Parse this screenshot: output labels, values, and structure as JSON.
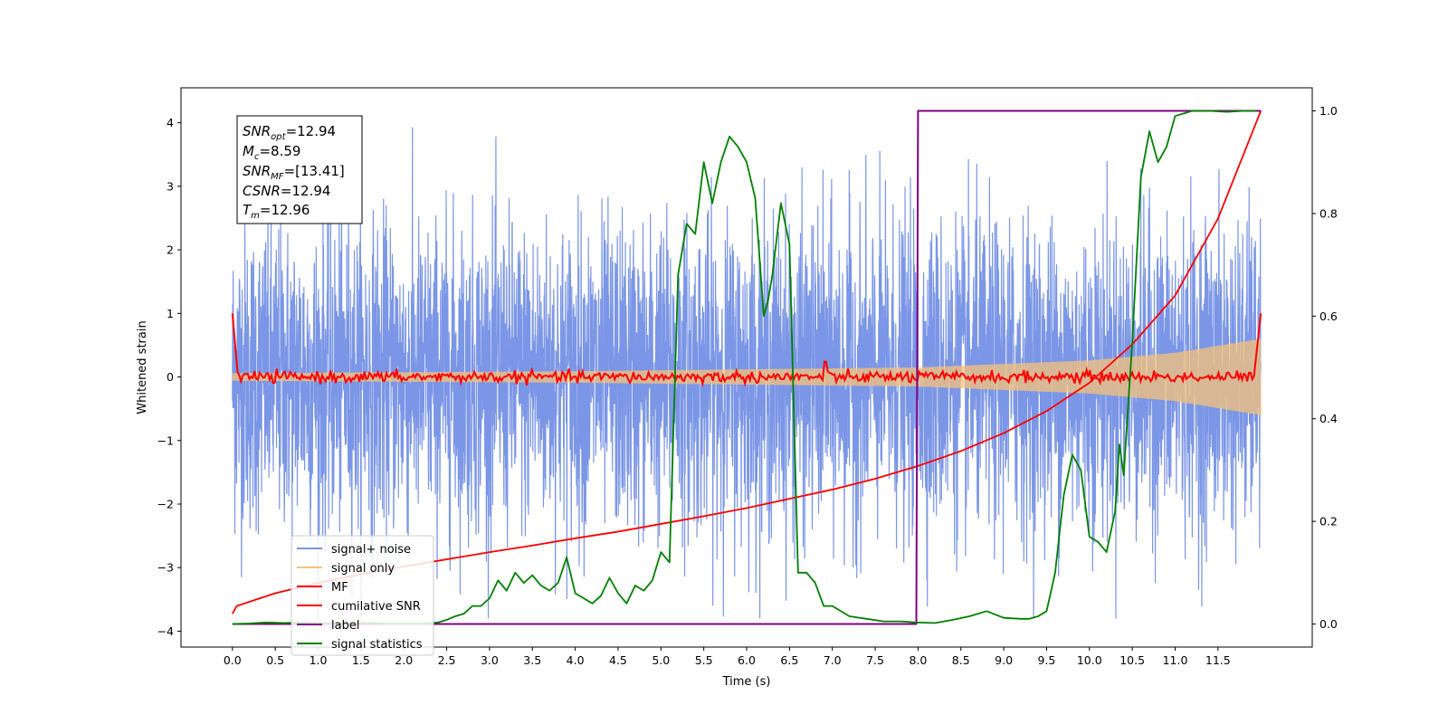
{
  "chart_data": {
    "type": "line",
    "xlabel": "Time (s)",
    "ylabel": "Whitened strain",
    "ylabel_right": "",
    "xlim": [
      -0.6,
      12.6
    ],
    "ylim": [
      -4.25,
      4.55
    ],
    "ylim_right": [
      -0.045,
      1.045
    ],
    "x_ticks": [
      "0.0",
      "0.5",
      "1.0",
      "1.5",
      "2.0",
      "2.5",
      "3.0",
      "3.5",
      "4.0",
      "4.5",
      "5.0",
      "5.5",
      "6.0",
      "6.5",
      "7.0",
      "7.5",
      "8.0",
      "8.5",
      "9.0",
      "9.5",
      "10.0",
      "10.5",
      "11.0",
      "11.5"
    ],
    "y_ticks_left": [
      "4",
      "3",
      "2",
      "1",
      "0",
      "−1",
      "−2",
      "−3",
      "−4"
    ],
    "y_ticks_right": [
      "1.0",
      "0.8",
      "0.6",
      "0.4",
      "0.2",
      "0.0"
    ],
    "info_box": [
      {
        "sym": "SNR",
        "sub": "opt",
        "text": "=12.94"
      },
      {
        "sym": "M",
        "sub": "c",
        "text": "=8.59"
      },
      {
        "sym": "SNR",
        "sub": "MF",
        "text": "=[13.41]"
      },
      {
        "sym": "CSNR",
        "sub": "",
        "text": "=12.94"
      },
      {
        "sym": "T",
        "sub": "m",
        "text": "=12.96"
      }
    ],
    "legend_position": "lower-left",
    "legend": [
      {
        "label": "signal+ noise",
        "color": "#7b96e6"
      },
      {
        "label": "signal only",
        "color": "#f5c27a"
      },
      {
        "label": "MF",
        "color": "#ff0000"
      },
      {
        "label": "cumilative SNR",
        "color": "#ff0000"
      },
      {
        "label": "label",
        "color": "#800080"
      },
      {
        "label": "signal statistics",
        "color": "#008000"
      }
    ],
    "series": [
      {
        "name": "signal+ noise",
        "axis": "left",
        "color": "#7b96e6",
        "description": "whitened noisy strain from 0 to 12 s, amplitude about ±2 to ±3.8"
      },
      {
        "name": "signal only",
        "axis": "left",
        "color": "#f5c27a",
        "envelope": {
          "x": [
            0,
            4,
            8,
            10,
            11,
            12
          ],
          "amp": [
            0.06,
            0.09,
            0.15,
            0.26,
            0.38,
            0.6
          ]
        }
      },
      {
        "name": "MF",
        "axis": "left",
        "color": "#ff0000",
        "description": "starts at 1.0, drops to about 0 by 0.08 s, fluctuates ±0.12, ends at 1.0 at 12 s"
      },
      {
        "name": "cumilative SNR",
        "axis": "right",
        "color": "#ff0000",
        "x": [
          0.0,
          0.05,
          0.5,
          1.0,
          1.5,
          2.0,
          2.5,
          3.0,
          3.5,
          4.0,
          4.5,
          5.0,
          5.5,
          6.0,
          6.5,
          7.0,
          7.5,
          8.0,
          8.5,
          9.0,
          9.5,
          10.0,
          10.5,
          11.0,
          11.5,
          12.0
        ],
        "y": [
          0.02,
          0.035,
          0.06,
          0.08,
          0.097,
          0.112,
          0.126,
          0.14,
          0.153,
          0.167,
          0.18,
          0.195,
          0.21,
          0.226,
          0.244,
          0.262,
          0.283,
          0.308,
          0.337,
          0.372,
          0.415,
          0.47,
          0.545,
          0.64,
          0.79,
          1.0
        ]
      },
      {
        "name": "label",
        "axis": "right",
        "color": "#800080",
        "x": [
          0.0,
          7.98,
          8.0,
          12.0
        ],
        "y": [
          0.0,
          0.0,
          1.0,
          1.0
        ]
      },
      {
        "name": "signal statistics",
        "axis": "right",
        "color": "#008000",
        "x": [
          0.0,
          0.2,
          0.4,
          0.6,
          0.8,
          1.0,
          1.2,
          1.4,
          1.6,
          1.8,
          2.0,
          2.2,
          2.4,
          2.5,
          2.6,
          2.7,
          2.8,
          2.9,
          3.0,
          3.1,
          3.2,
          3.3,
          3.4,
          3.5,
          3.6,
          3.7,
          3.8,
          3.9,
          4.0,
          4.1,
          4.2,
          4.3,
          4.4,
          4.5,
          4.6,
          4.7,
          4.8,
          4.9,
          5.0,
          5.1,
          5.2,
          5.3,
          5.4,
          5.5,
          5.6,
          5.7,
          5.8,
          5.9,
          6.0,
          6.1,
          6.2,
          6.25,
          6.3,
          6.4,
          6.5,
          6.6,
          6.7,
          6.8,
          6.9,
          7.0,
          7.2,
          7.4,
          7.6,
          7.8,
          7.98,
          8.2,
          8.4,
          8.6,
          8.8,
          9.0,
          9.2,
          9.3,
          9.4,
          9.5,
          9.6,
          9.7,
          9.8,
          9.9,
          10.0,
          10.1,
          10.2,
          10.3,
          10.35,
          10.4,
          10.5,
          10.6,
          10.7,
          10.8,
          10.9,
          11.0,
          11.2,
          11.4,
          11.6,
          11.8,
          11.95
        ],
        "y": [
          0.0,
          0.001,
          0.003,
          0.002,
          0.003,
          0.002,
          0.002,
          0.002,
          0.002,
          0.001,
          0.001,
          0.001,
          0.003,
          0.008,
          0.015,
          0.02,
          0.035,
          0.035,
          0.05,
          0.085,
          0.065,
          0.1,
          0.08,
          0.095,
          0.075,
          0.065,
          0.08,
          0.13,
          0.06,
          0.05,
          0.04,
          0.055,
          0.09,
          0.06,
          0.04,
          0.075,
          0.065,
          0.085,
          0.14,
          0.12,
          0.68,
          0.78,
          0.76,
          0.9,
          0.82,
          0.9,
          0.95,
          0.93,
          0.9,
          0.83,
          0.6,
          0.63,
          0.68,
          0.82,
          0.74,
          0.1,
          0.1,
          0.08,
          0.035,
          0.035,
          0.015,
          0.01,
          0.005,
          0.005,
          0.003,
          0.002,
          0.008,
          0.015,
          0.025,
          0.012,
          0.01,
          0.01,
          0.015,
          0.025,
          0.1,
          0.25,
          0.33,
          0.3,
          0.17,
          0.16,
          0.14,
          0.22,
          0.35,
          0.29,
          0.55,
          0.87,
          0.96,
          0.9,
          0.93,
          0.99,
          1.0,
          1.0,
          0.998,
          1.0,
          1.0
        ]
      }
    ]
  }
}
